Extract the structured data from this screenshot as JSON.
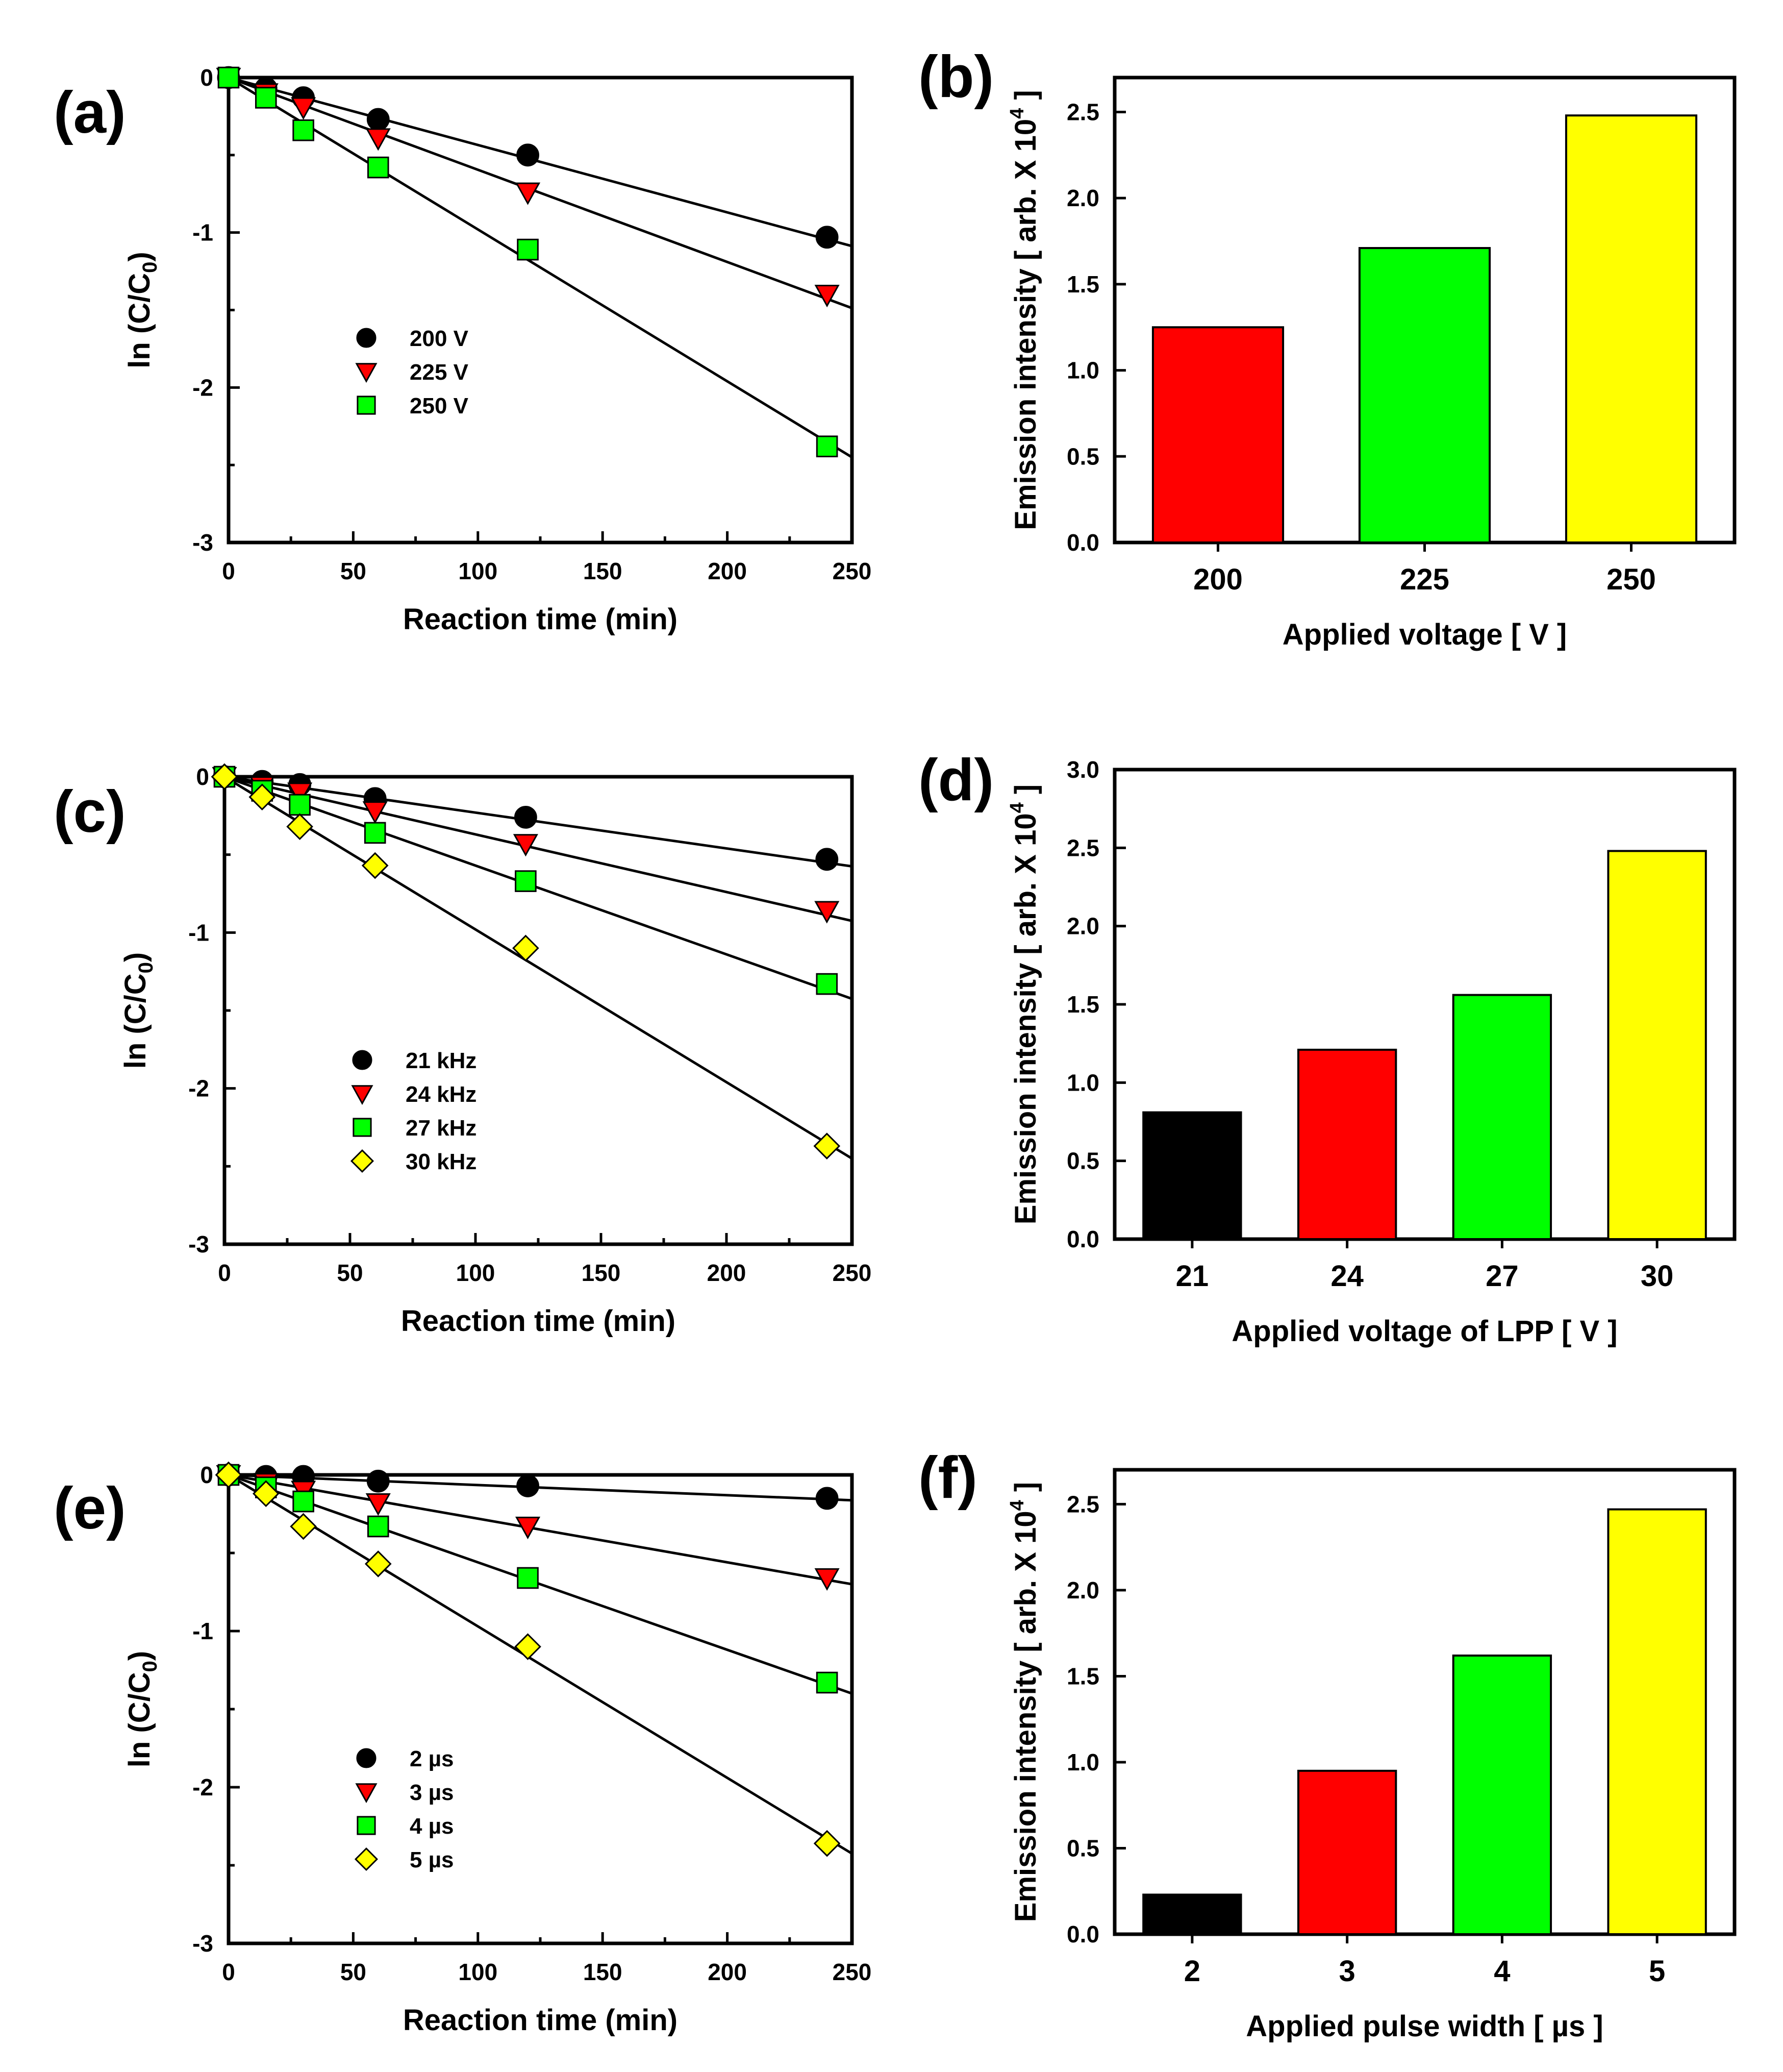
{
  "chart_data": [
    {
      "id": "a",
      "panel_label": "(a)",
      "type": "scatter",
      "xlabel": "Reaction time (min)",
      "ylabel": {
        "main": "ln (C/C",
        "sub": "0",
        "end": ")"
      },
      "xlim": [
        0,
        250
      ],
      "ylim": [
        -3,
        0
      ],
      "xticks": [
        "0",
        "50",
        "100",
        "150",
        "200",
        "250"
      ],
      "yticks": [
        "0",
        "-1",
        "-2",
        "-3"
      ],
      "x": [
        0,
        15,
        30,
        60,
        120,
        240
      ],
      "series": [
        {
          "name": "200 V",
          "marker": "circle",
          "color": "#000000",
          "values": [
            0,
            -0.07,
            -0.13,
            -0.27,
            -0.5,
            -1.03
          ],
          "slope": -0.00435
        },
        {
          "name": "225 V",
          "marker": "triangle-down",
          "color": "#ff0000",
          "values": [
            0,
            -0.1,
            -0.19,
            -0.39,
            -0.74,
            -1.4
          ],
          "slope": -0.00595
        },
        {
          "name": "250 V",
          "marker": "square",
          "color": "#00ff00",
          "values": [
            0,
            -0.13,
            -0.34,
            -0.58,
            -1.11,
            -2.38
          ],
          "slope": -0.0098
        }
      ]
    },
    {
      "id": "b",
      "panel_label": "(b)",
      "type": "bar",
      "xlabel": "Applied voltage [ V ]",
      "ylabel": {
        "main": "Emission intensity [ arb. X 10",
        "sup": "4",
        "end": " ]"
      },
      "ylim": [
        0,
        2.7
      ],
      "yticks": [
        "0.0",
        "0.5",
        "1.0",
        "1.5",
        "2.0",
        "2.5"
      ],
      "categories": [
        "200",
        "225",
        "250"
      ],
      "values": [
        1.25,
        1.71,
        2.48
      ],
      "colors": [
        "#ff0000",
        "#00ff00",
        "#ffff00"
      ]
    },
    {
      "id": "c",
      "panel_label": "(c)",
      "type": "scatter",
      "xlabel": "Reaction time (min)",
      "ylabel": {
        "main": "ln (C/C",
        "sub": "0",
        "end": ")"
      },
      "xlim": [
        0,
        250
      ],
      "ylim": [
        -3,
        0
      ],
      "xticks": [
        "0",
        "50",
        "100",
        "150",
        "200",
        "250"
      ],
      "yticks": [
        "0",
        "-1",
        "-2",
        "-3"
      ],
      "x": [
        0,
        15,
        30,
        60,
        120,
        240
      ],
      "series": [
        {
          "name": "21 kHz",
          "marker": "circle",
          "color": "#000000",
          "values": [
            0,
            -0.03,
            -0.05,
            -0.14,
            -0.26,
            -0.53
          ],
          "slope": -0.0023
        },
        {
          "name": "24 kHz",
          "marker": "triangle-down",
          "color": "#ff0000",
          "values": [
            0,
            -0.06,
            -0.1,
            -0.22,
            -0.43,
            -0.86
          ],
          "slope": -0.0037
        },
        {
          "name": "27 kHz",
          "marker": "square",
          "color": "#00ff00",
          "values": [
            0,
            -0.09,
            -0.18,
            -0.36,
            -0.67,
            -1.33
          ],
          "slope": -0.0057
        },
        {
          "name": "30 kHz",
          "marker": "diamond",
          "color": "#ffff00",
          "values": [
            0,
            -0.13,
            -0.32,
            -0.57,
            -1.1,
            -2.37
          ],
          "slope": -0.0098
        }
      ]
    },
    {
      "id": "d",
      "panel_label": "(d)",
      "type": "bar",
      "xlabel": "Applied voltage of LPP [ V ]",
      "ylabel": {
        "main": "Emission intensity [ arb. X 10",
        "sup": "4",
        "end": " ]"
      },
      "ylim": [
        0,
        3.0
      ],
      "yticks": [
        "0.0",
        "0.5",
        "1.0",
        "1.5",
        "2.0",
        "2.5",
        "3.0"
      ],
      "categories": [
        "21",
        "24",
        "27",
        "30"
      ],
      "values": [
        0.81,
        1.21,
        1.56,
        2.48
      ],
      "colors": [
        "#000000",
        "#ff0000",
        "#00ff00",
        "#ffff00"
      ]
    },
    {
      "id": "e",
      "panel_label": "(e)",
      "type": "scatter",
      "xlabel": "Reaction time (min)",
      "ylabel": {
        "main": "ln (C/C",
        "sub": "0",
        "end": ")"
      },
      "xlim": [
        0,
        250
      ],
      "ylim": [
        -3,
        0
      ],
      "xticks": [
        "0",
        "50",
        "100",
        "150",
        "200",
        "250"
      ],
      "yticks": [
        "0",
        "-1",
        "-2",
        "-3"
      ],
      "x": [
        0,
        15,
        30,
        60,
        120,
        240
      ],
      "series": [
        {
          "name": "2 µs",
          "marker": "circle",
          "color": "#000000",
          "values": [
            0,
            -0.01,
            -0.01,
            -0.04,
            -0.07,
            -0.15
          ],
          "slope": -0.00065
        },
        {
          "name": "3 µs",
          "marker": "triangle-down",
          "color": "#ff0000",
          "values": [
            0,
            -0.05,
            -0.1,
            -0.18,
            -0.33,
            -0.66
          ],
          "slope": -0.0028
        },
        {
          "name": "4 µs",
          "marker": "square",
          "color": "#00ff00",
          "values": [
            0,
            -0.08,
            -0.17,
            -0.33,
            -0.66,
            -1.33
          ],
          "slope": -0.0056
        },
        {
          "name": "5 µs",
          "marker": "diamond",
          "color": "#ffff00",
          "values": [
            0,
            -0.12,
            -0.33,
            -0.57,
            -1.1,
            -2.36
          ],
          "slope": -0.0097
        }
      ]
    },
    {
      "id": "f",
      "panel_label": "(f)",
      "type": "bar",
      "xlabel": "Applied pulse width [ µs ]",
      "ylabel": {
        "main": "Emission intensity [ arb. X 10",
        "sup": "4",
        "end": " ]"
      },
      "ylim": [
        0,
        2.7
      ],
      "yticks": [
        "0.0",
        "0.5",
        "1.0",
        "1.5",
        "2.0",
        "2.5"
      ],
      "categories": [
        "2",
        "3",
        "4",
        "5"
      ],
      "values": [
        0.23,
        0.95,
        1.62,
        2.47
      ],
      "colors": [
        "#000000",
        "#ff0000",
        "#00ff00",
        "#ffff00"
      ]
    }
  ]
}
